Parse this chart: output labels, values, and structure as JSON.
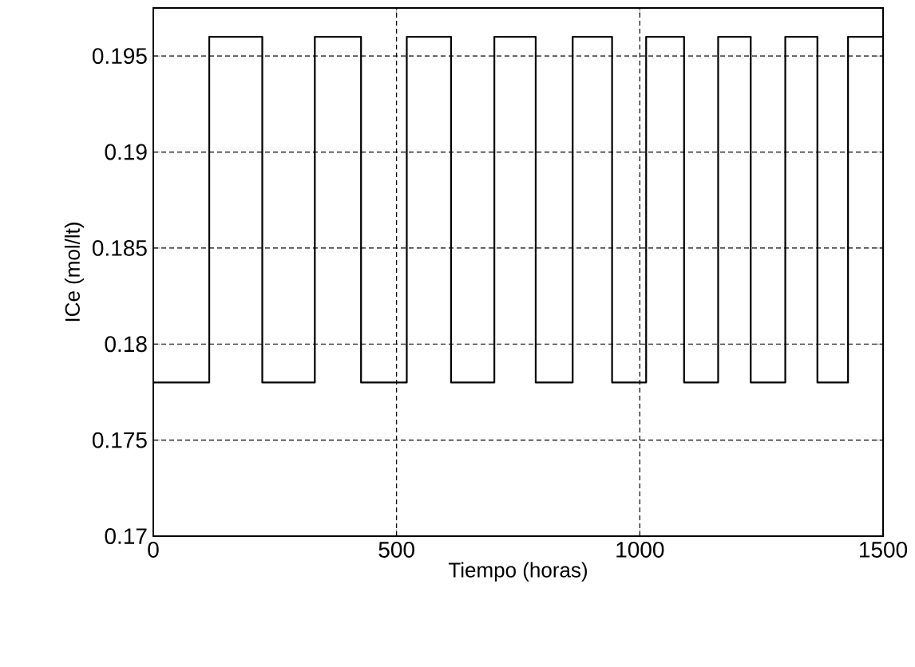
{
  "chart_data": {
    "type": "step",
    "xlabel": "Tiempo (horas)",
    "ylabel": "ICe (mol/lt)",
    "x": [
      0,
      115,
      224,
      332,
      427,
      521,
      612,
      701,
      786,
      862,
      943,
      1013,
      1091,
      1161,
      1228,
      1299,
      1365,
      1428,
      1500
    ],
    "values": [
      0.178,
      0.196,
      0.178,
      0.196,
      0.178,
      0.196,
      0.178,
      0.196,
      0.178,
      0.196,
      0.178,
      0.196,
      0.178,
      0.196,
      0.178,
      0.196,
      0.178,
      0.196,
      0.196
    ],
    "color": "#000000",
    "xlim": [
      0,
      1500
    ],
    "ylim": [
      0.17,
      0.1975
    ],
    "xticks": [
      0,
      500,
      1000,
      1500
    ],
    "yticks": [
      0.17,
      0.175,
      0.18,
      0.185,
      0.19,
      0.195
    ],
    "grid": true,
    "marker": "none",
    "line_style": "solid"
  }
}
